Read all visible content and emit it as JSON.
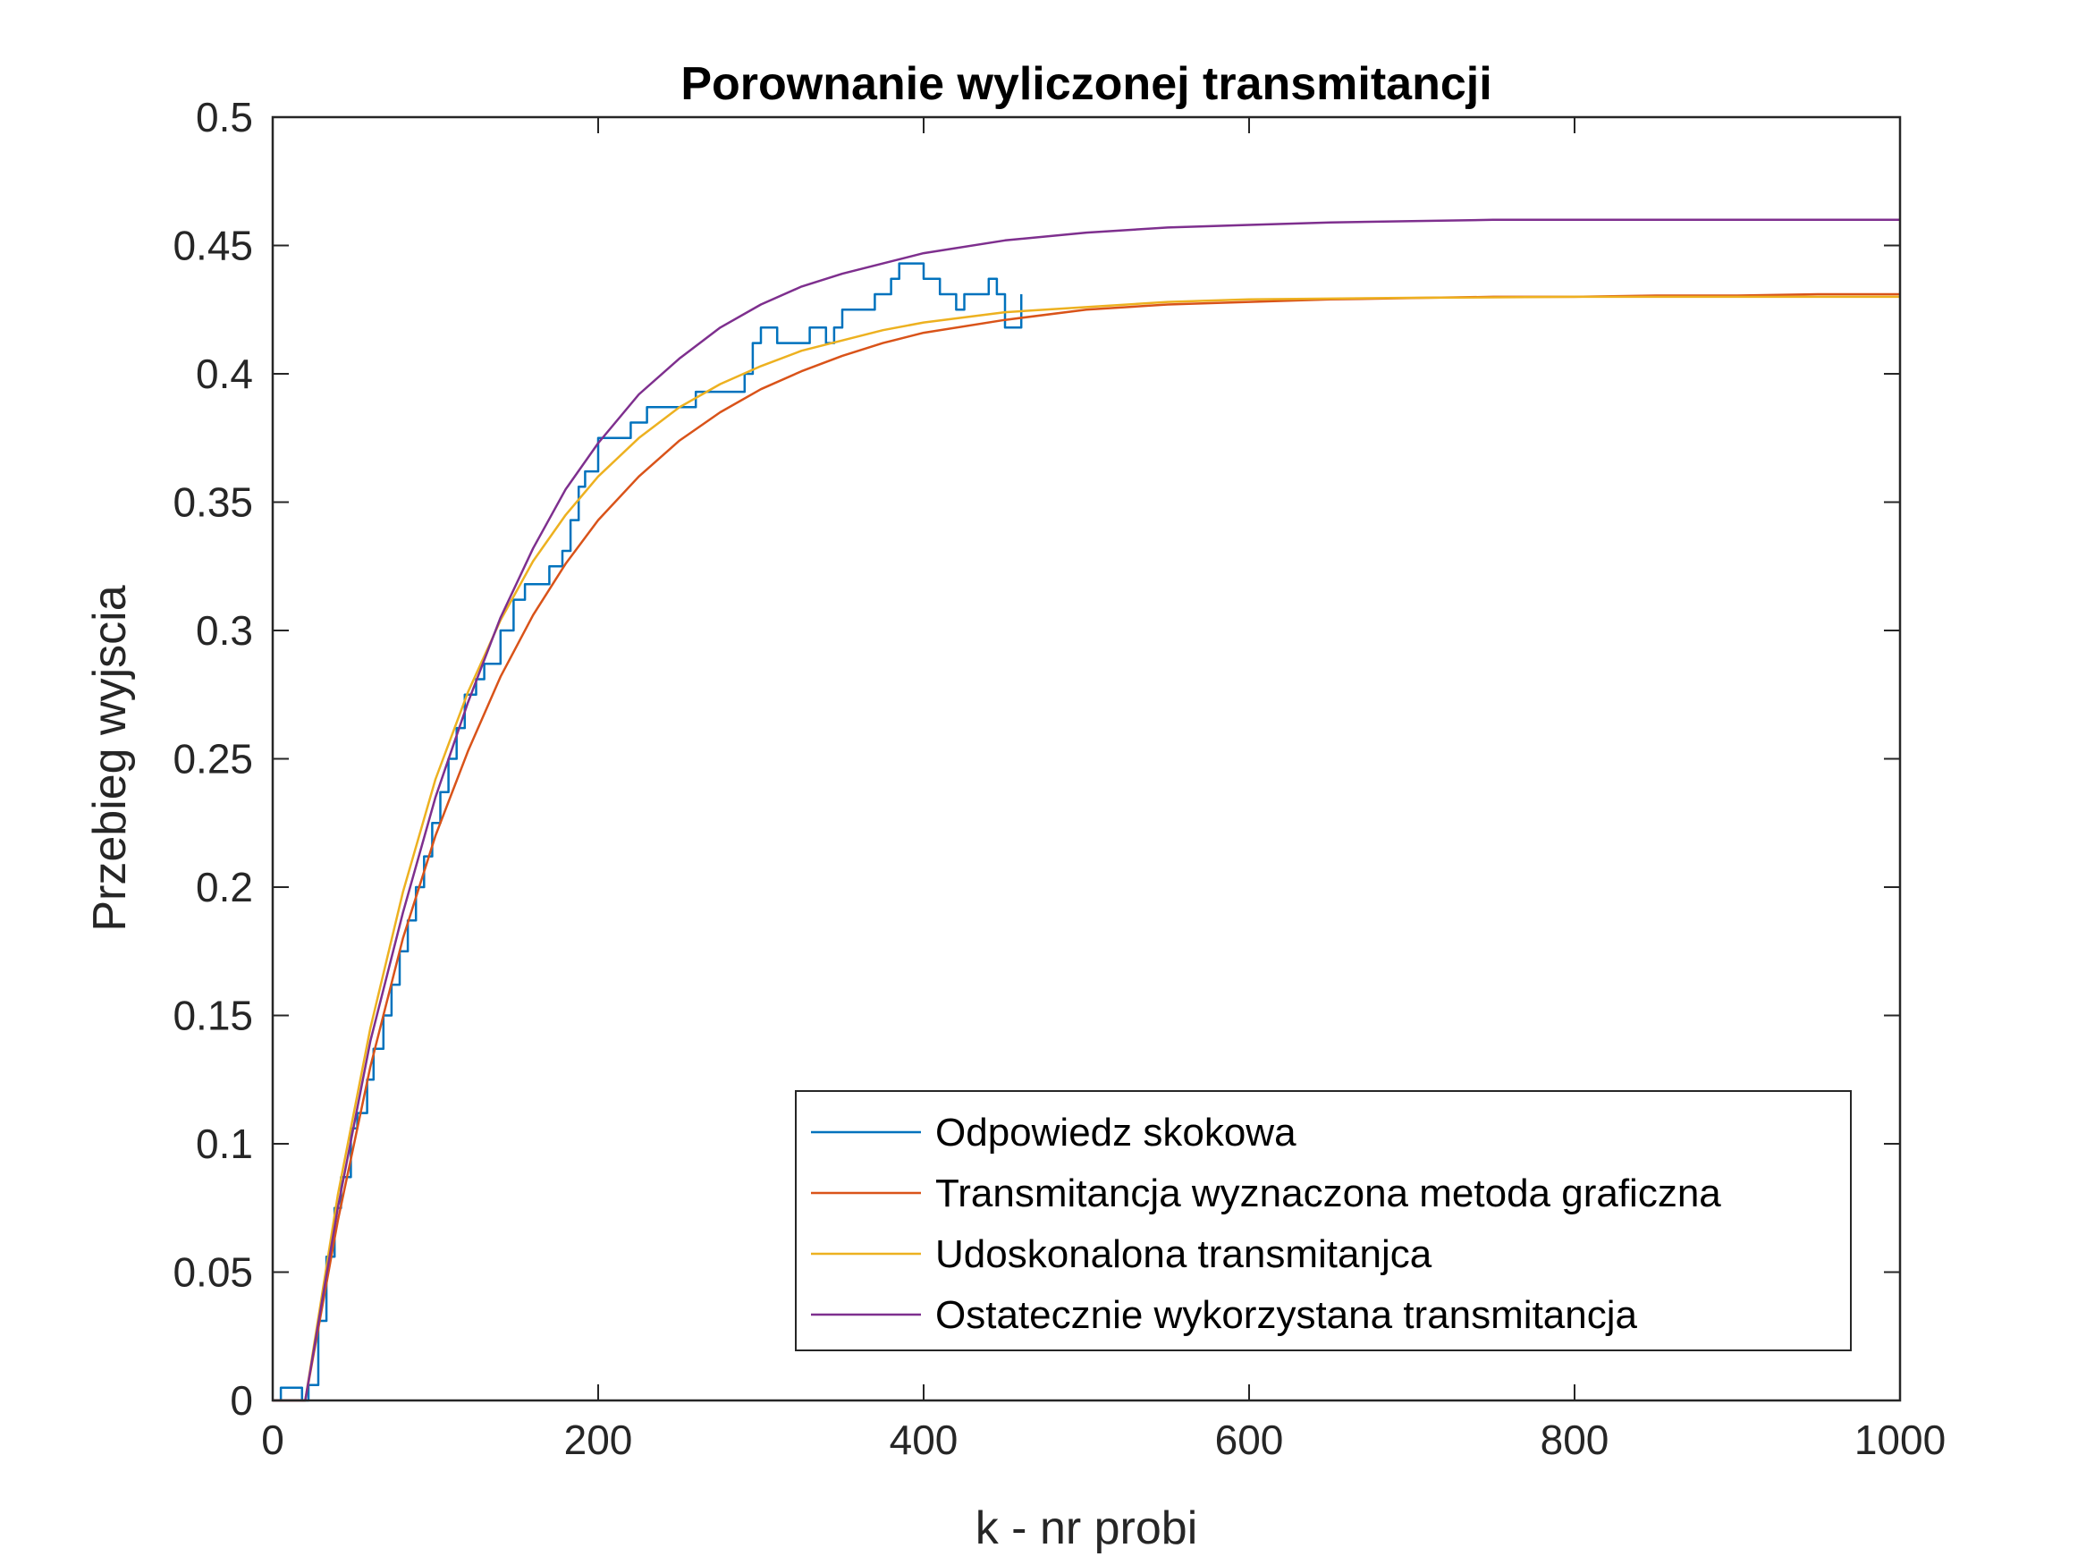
{
  "chart_data": {
    "type": "line",
    "title": "Porownanie wyliczonej transmitancji",
    "xlabel": "k - nr probi",
    "ylabel": "Przebieg wyjscia",
    "xlim": [
      0,
      1000
    ],
    "ylim": [
      0,
      0.5
    ],
    "xticks": [
      0,
      200,
      400,
      600,
      800,
      1000
    ],
    "xtick_labels": [
      "0",
      "200",
      "400",
      "600",
      "800",
      "1000"
    ],
    "yticks": [
      0,
      0.05,
      0.1,
      0.15,
      0.2,
      0.25,
      0.3,
      0.35,
      0.4,
      0.45,
      0.5
    ],
    "ytick_labels": [
      "0",
      "0.05",
      "0.1",
      "0.15",
      "0.2",
      "0.25",
      "0.3",
      "0.35",
      "0.4",
      "0.45",
      "0.5"
    ],
    "grid": false,
    "legend_position": "bottom-right",
    "series": [
      {
        "name": "Odpowiedz skokowa",
        "color": "#0072BD",
        "style": "step",
        "x": [
          0,
          5,
          15,
          18,
          22,
          28,
          33,
          38,
          42,
          48,
          52,
          58,
          62,
          68,
          73,
          78,
          83,
          88,
          93,
          98,
          103,
          108,
          113,
          118,
          125,
          130,
          140,
          148,
          155,
          163,
          170,
          178,
          183,
          188,
          192,
          200,
          210,
          220,
          230,
          240,
          250,
          260,
          270,
          280,
          290,
          295,
          300,
          310,
          320,
          330,
          340,
          345,
          350,
          360,
          370,
          375,
          380,
          385,
          400,
          410,
          420,
          425,
          435,
          440,
          445,
          450,
          455,
          460
        ],
        "y": [
          0,
          0.005,
          0.005,
          0,
          0.006,
          0.031,
          0.056,
          0.075,
          0.087,
          0.106,
          0.112,
          0.125,
          0.137,
          0.15,
          0.162,
          0.175,
          0.187,
          0.2,
          0.212,
          0.225,
          0.237,
          0.25,
          0.262,
          0.275,
          0.281,
          0.287,
          0.3,
          0.312,
          0.318,
          0.318,
          0.325,
          0.331,
          0.343,
          0.356,
          0.362,
          0.375,
          0.375,
          0.381,
          0.387,
          0.387,
          0.387,
          0.393,
          0.393,
          0.393,
          0.4,
          0.412,
          0.418,
          0.412,
          0.412,
          0.418,
          0.412,
          0.418,
          0.425,
          0.425,
          0.431,
          0.431,
          0.437,
          0.443,
          0.437,
          0.431,
          0.425,
          0.431,
          0.431,
          0.437,
          0.431,
          0.418,
          0.418,
          0.431
        ]
      },
      {
        "name": "Transmitancja wyznaczona metoda graficzna",
        "color": "#D95319",
        "style": "smooth",
        "x": [
          0,
          20,
          40,
          60,
          80,
          100,
          120,
          140,
          160,
          180,
          200,
          225,
          250,
          275,
          300,
          325,
          350,
          375,
          400,
          450,
          500,
          550,
          600,
          650,
          700,
          750,
          800,
          850,
          900,
          950,
          1000
        ],
        "y": [
          0,
          0,
          0.07,
          0.13,
          0.18,
          0.22,
          0.253,
          0.282,
          0.306,
          0.326,
          0.343,
          0.36,
          0.374,
          0.385,
          0.394,
          0.401,
          0.407,
          0.412,
          0.416,
          0.421,
          0.425,
          0.427,
          0.428,
          0.429,
          0.4295,
          0.43,
          0.43,
          0.4305,
          0.4305,
          0.431,
          0.431
        ]
      },
      {
        "name": "Udoskonalona transmitanjca",
        "color": "#EDB120",
        "style": "smooth",
        "x": [
          0,
          20,
          40,
          60,
          80,
          100,
          120,
          140,
          160,
          180,
          200,
          225,
          250,
          275,
          300,
          325,
          350,
          375,
          400,
          450,
          500,
          550,
          600,
          650,
          700,
          750,
          800,
          850,
          900,
          950,
          1000
        ],
        "y": [
          0,
          0,
          0.08,
          0.145,
          0.198,
          0.242,
          0.276,
          0.304,
          0.327,
          0.345,
          0.36,
          0.375,
          0.387,
          0.396,
          0.403,
          0.409,
          0.413,
          0.417,
          0.42,
          0.424,
          0.426,
          0.428,
          0.429,
          0.4293,
          0.4296,
          0.4298,
          0.43,
          0.43,
          0.43,
          0.43,
          0.43
        ]
      },
      {
        "name": "Ostatecznie wykorzystana transmitancja",
        "color": "#7E2F8E",
        "style": "smooth",
        "x": [
          0,
          20,
          40,
          60,
          80,
          100,
          120,
          140,
          160,
          180,
          200,
          225,
          250,
          275,
          300,
          325,
          350,
          375,
          400,
          450,
          500,
          550,
          600,
          650,
          700,
          750,
          800,
          850,
          900,
          950,
          1000
        ],
        "y": [
          0,
          0,
          0.075,
          0.14,
          0.19,
          0.235,
          0.272,
          0.305,
          0.332,
          0.355,
          0.373,
          0.392,
          0.406,
          0.418,
          0.427,
          0.434,
          0.439,
          0.443,
          0.447,
          0.452,
          0.455,
          0.457,
          0.458,
          0.459,
          0.4595,
          0.46,
          0.46,
          0.46,
          0.46,
          0.46,
          0.46
        ]
      }
    ]
  }
}
